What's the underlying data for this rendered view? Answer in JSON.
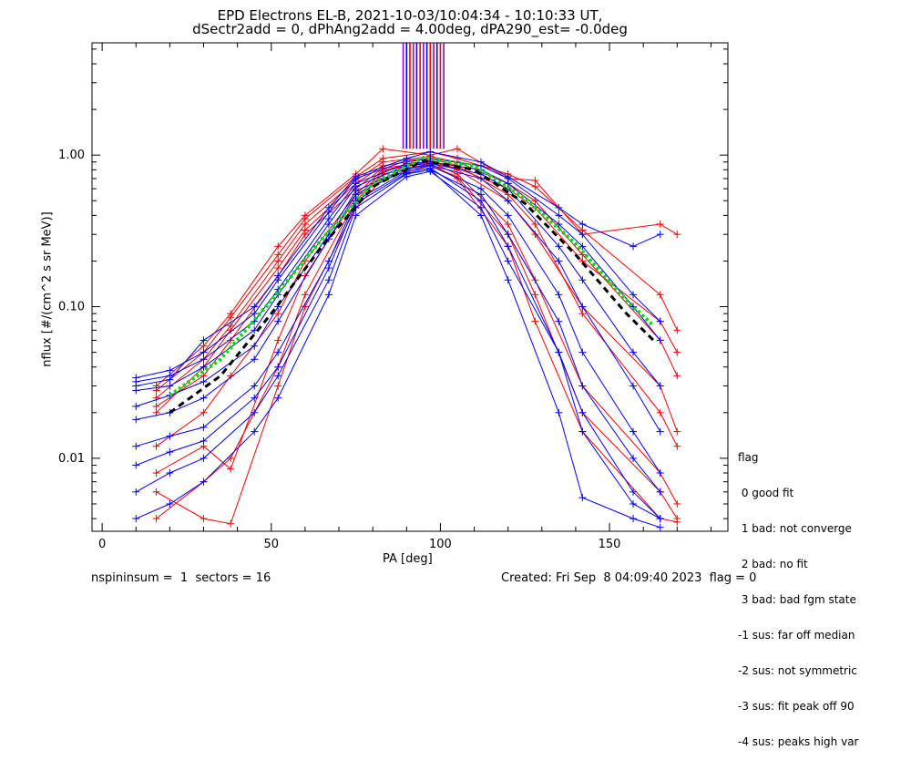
{
  "header": {
    "title_line1": "EPD Electrons EL-B, 2021-10-03/10:04:34 - 10:10:33 UT,",
    "title_line2": "dSectr2add = 0, dPhAng2add = 4.00deg, dPA290_est=  -0.0deg"
  },
  "footer": {
    "left": "nspininsum =  1  sectors = 16",
    "right": "Created: Fri Sep  8 04:09:40 2023  flag = 0"
  },
  "legend": {
    "title": "flag",
    "items": [
      " 0 good fit",
      " 1 bad: not converge",
      " 2 bad: no fit",
      " 3 bad: bad fgm state",
      "-1 sus: far off median",
      "-2 sus: not symmetric",
      "-3 sus: fit peak off 90",
      "-4 sus: peaks high var"
    ]
  },
  "chart_data": {
    "type": "line",
    "xlabel": "PA [deg]",
    "ylabel": "nflux [#/(cm^2 s sr MeV)]",
    "xlim": [
      -3,
      185
    ],
    "ylim": [
      0.0033,
      5.5
    ],
    "yscale": "log",
    "x_ticks": [
      0,
      50,
      100,
      150
    ],
    "y_ticks": [
      {
        "value": 0.01,
        "label": "0.01"
      },
      {
        "value": 0.1,
        "label": "0.10"
      },
      {
        "value": 1.0,
        "label": "1.00"
      }
    ],
    "colors": {
      "red": "#ff0000",
      "blue": "#0000ff",
      "black": "#000000",
      "green": "#00dd00",
      "purple": "#a000c8"
    },
    "series": [
      {
        "color": "#ff0000",
        "x": [
          16,
          30,
          38,
          52,
          60,
          75,
          83,
          97,
          105,
          120,
          128,
          142,
          165,
          170
        ],
        "y": [
          0.028,
          0.05,
          0.085,
          0.22,
          0.38,
          0.72,
          0.95,
          1.05,
          0.95,
          0.75,
          0.62,
          0.32,
          0.12,
          0.07
        ]
      },
      {
        "color": "#ff0000",
        "x": [
          16,
          30,
          38,
          52,
          60,
          75,
          83,
          97,
          105,
          120,
          128,
          142,
          165,
          170
        ],
        "y": [
          0.025,
          0.045,
          0.075,
          0.2,
          0.35,
          0.68,
          0.9,
          0.98,
          0.9,
          0.65,
          0.5,
          0.22,
          0.06,
          0.035
        ]
      },
      {
        "color": "#ff0000",
        "x": [
          16,
          30,
          38,
          52,
          60,
          75,
          83,
          97,
          105,
          120,
          128,
          142,
          165,
          170
        ],
        "y": [
          0.02,
          0.04,
          0.07,
          0.18,
          0.32,
          0.65,
          0.85,
          0.95,
          0.85,
          0.55,
          0.35,
          0.09,
          0.02,
          0.012
        ]
      },
      {
        "color": "#ff0000",
        "x": [
          16,
          30,
          38,
          52,
          60,
          75,
          83,
          97,
          105,
          120,
          128,
          142,
          165,
          170
        ],
        "y": [
          0.012,
          0.02,
          0.035,
          0.09,
          0.2,
          0.55,
          0.8,
          0.9,
          0.75,
          0.35,
          0.15,
          0.03,
          0.008,
          0.005
        ]
      },
      {
        "color": "#ff0000",
        "x": [
          16,
          30,
          38,
          52,
          60,
          75,
          83,
          97,
          105,
          120,
          128,
          142,
          165,
          170
        ],
        "y": [
          0.004,
          0.007,
          0.01,
          0.04,
          0.12,
          0.5,
          0.75,
          0.88,
          0.7,
          0.25,
          0.08,
          0.015,
          0.004,
          0.0038
        ]
      },
      {
        "color": "#ff0000",
        "x": [
          16,
          30,
          38,
          52,
          60,
          75,
          83,
          97,
          105,
          120,
          128,
          142,
          165,
          170
        ],
        "y": [
          0.008,
          0.012,
          0.0085,
          0.06,
          0.16,
          0.52,
          0.78,
          0.92,
          0.8,
          0.5,
          0.3,
          0.1,
          0.03,
          0.015
        ]
      },
      {
        "color": "#ff0000",
        "x": [
          16,
          30,
          38,
          52,
          60,
          75,
          83,
          97,
          105,
          120,
          128,
          142,
          165,
          170
        ],
        "y": [
          0.03,
          0.055,
          0.09,
          0.25,
          0.4,
          0.75,
          1.1,
          1.0,
          1.1,
          0.7,
          0.68,
          0.3,
          0.35,
          0.3
        ]
      },
      {
        "color": "#ff0000",
        "x": [
          16,
          30,
          38,
          52,
          60,
          75,
          83,
          97,
          105,
          120,
          128,
          142,
          165,
          170
        ],
        "y": [
          0.022,
          0.035,
          0.06,
          0.16,
          0.3,
          0.6,
          0.82,
          0.9,
          0.82,
          0.6,
          0.45,
          0.2,
          0.08,
          0.05
        ]
      },
      {
        "color": "#ff0000",
        "x": [
          16,
          30,
          38,
          52,
          60,
          75,
          83,
          97,
          105,
          120,
          128,
          142,
          165,
          170
        ],
        "y": [
          0.006,
          0.004,
          0.0037,
          0.03,
          0.1,
          0.45,
          0.7,
          0.85,
          0.72,
          0.3,
          0.12,
          0.02,
          0.006,
          0.004
        ]
      },
      {
        "color": "#0000ff",
        "x": [
          10,
          20,
          30,
          45,
          52,
          67,
          75,
          90,
          97,
          112,
          120,
          135,
          142,
          157,
          165
        ],
        "y": [
          0.034,
          0.038,
          0.05,
          0.09,
          0.15,
          0.42,
          0.7,
          0.92,
          0.95,
          0.85,
          0.7,
          0.4,
          0.3,
          0.12,
          0.08
        ]
      },
      {
        "color": "#0000ff",
        "x": [
          10,
          20,
          30,
          45,
          52,
          67,
          75,
          90,
          97,
          112,
          120,
          135,
          142,
          157,
          165
        ],
        "y": [
          0.032,
          0.035,
          0.045,
          0.08,
          0.13,
          0.38,
          0.65,
          0.88,
          0.9,
          0.8,
          0.65,
          0.35,
          0.25,
          0.1,
          0.06
        ]
      },
      {
        "color": "#0000ff",
        "x": [
          10,
          20,
          30,
          45,
          52,
          67,
          75,
          90,
          97,
          112,
          120,
          135,
          142,
          157,
          165
        ],
        "y": [
          0.028,
          0.03,
          0.04,
          0.07,
          0.12,
          0.35,
          0.62,
          0.85,
          0.88,
          0.75,
          0.6,
          0.25,
          0.15,
          0.05,
          0.03
        ]
      },
      {
        "color": "#0000ff",
        "x": [
          10,
          20,
          30,
          45,
          52,
          67,
          75,
          90,
          97,
          112,
          120,
          135,
          142,
          157,
          165
        ],
        "y": [
          0.018,
          0.02,
          0.025,
          0.045,
          0.08,
          0.28,
          0.55,
          0.8,
          0.85,
          0.6,
          0.4,
          0.12,
          0.05,
          0.015,
          0.008
        ]
      },
      {
        "color": "#0000ff",
        "x": [
          10,
          20,
          30,
          45,
          52,
          67,
          75,
          90,
          97,
          112,
          120,
          135,
          142,
          157,
          165
        ],
        "y": [
          0.012,
          0.014,
          0.016,
          0.03,
          0.05,
          0.2,
          0.5,
          0.78,
          0.82,
          0.5,
          0.25,
          0.05,
          0.02,
          0.006,
          0.004
        ]
      },
      {
        "color": "#0000ff",
        "x": [
          10,
          20,
          30,
          45,
          52,
          67,
          75,
          90,
          97,
          112,
          120,
          135,
          142,
          157,
          165
        ],
        "y": [
          0.006,
          0.008,
          0.01,
          0.02,
          0.035,
          0.15,
          0.45,
          0.75,
          0.8,
          0.4,
          0.15,
          0.02,
          0.0055,
          0.004,
          0.0035
        ]
      },
      {
        "color": "#0000ff",
        "x": [
          10,
          20,
          30,
          45,
          52,
          67,
          75,
          90,
          97,
          112,
          120,
          135,
          142,
          157,
          165
        ],
        "y": [
          0.004,
          0.005,
          0.007,
          0.015,
          0.025,
          0.12,
          0.4,
          0.72,
          0.78,
          0.45,
          0.2,
          0.05,
          0.015,
          0.005,
          0.004
        ]
      },
      {
        "color": "#0000ff",
        "x": [
          10,
          20,
          30,
          45,
          52,
          67,
          75,
          90,
          97,
          112,
          120,
          135,
          142,
          157,
          165
        ],
        "y": [
          0.03,
          0.033,
          0.06,
          0.1,
          0.16,
          0.45,
          0.72,
          0.95,
          1.05,
          0.9,
          0.72,
          0.45,
          0.35,
          0.25,
          0.3
        ]
      },
      {
        "color": "#0000ff",
        "x": [
          10,
          20,
          30,
          45,
          52,
          67,
          75,
          90,
          97,
          112,
          120,
          135,
          142,
          157,
          165
        ],
        "y": [
          0.022,
          0.026,
          0.032,
          0.055,
          0.1,
          0.3,
          0.58,
          0.82,
          0.86,
          0.7,
          0.5,
          0.2,
          0.1,
          0.03,
          0.015
        ]
      },
      {
        "color": "#0000ff",
        "x": [
          10,
          20,
          30,
          45,
          52,
          67,
          75,
          90,
          97,
          112,
          120,
          135,
          142,
          157,
          165
        ],
        "y": [
          0.009,
          0.011,
          0.013,
          0.025,
          0.04,
          0.18,
          0.48,
          0.76,
          0.8,
          0.55,
          0.3,
          0.08,
          0.03,
          0.01,
          0.006
        ]
      }
    ],
    "fit_black": {
      "color": "#000000",
      "style": "dashed",
      "x": [
        20,
        35,
        50,
        65,
        80,
        95,
        110,
        125,
        140,
        155,
        163
      ],
      "y": [
        0.02,
        0.035,
        0.09,
        0.25,
        0.62,
        0.92,
        0.8,
        0.48,
        0.22,
        0.09,
        0.06
      ]
    },
    "fit_green": {
      "color": "#00dd00",
      "style": "dotted",
      "x": [
        20,
        35,
        50,
        65,
        80,
        95,
        110,
        125,
        140,
        155,
        163
      ],
      "y": [
        0.026,
        0.045,
        0.11,
        0.28,
        0.65,
        0.96,
        0.85,
        0.52,
        0.26,
        0.11,
        0.075
      ]
    },
    "spikes": {
      "x": [
        89,
        90,
        91,
        92,
        93,
        94,
        95,
        96,
        97,
        98,
        99,
        100,
        101
      ],
      "ytop": 5.5,
      "ybottom": 1.1
    }
  }
}
